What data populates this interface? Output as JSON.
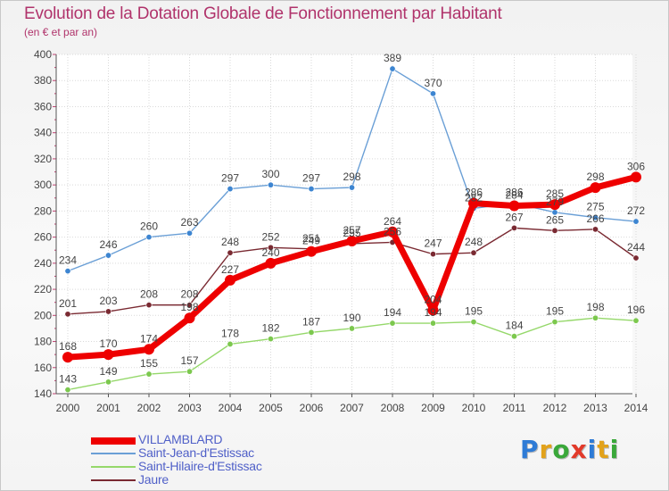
{
  "colors": {
    "title": "#b0336b",
    "grid": "#d9d9d9",
    "axis": "#555555",
    "label": "#444444"
  },
  "chart_data": {
    "type": "line",
    "title": "Evolution de la Dotation Globale de Fonctionnement par Habitant",
    "subtitle": "(en € et par an)",
    "xlabel": "",
    "ylabel": "",
    "ylim": [
      140,
      400
    ],
    "yticks": [
      140,
      160,
      180,
      200,
      220,
      240,
      260,
      280,
      300,
      320,
      340,
      360,
      380,
      400
    ],
    "categories": [
      "2000",
      "2001",
      "2002",
      "2003",
      "2004",
      "2005",
      "2006",
      "2007",
      "2008",
      "2009",
      "2010",
      "2011",
      "2012",
      "2013",
      "2014"
    ],
    "grid": true,
    "legend_position": "bottom-left",
    "series": [
      {
        "name": "Jaure",
        "color": "#7a2a32",
        "marker": "#7a2a32",
        "width": 1.4,
        "dot": 3.2,
        "values": [
          201,
          203,
          208,
          208,
          248,
          252,
          251,
          255,
          256,
          247,
          248,
          267,
          265,
          266,
          244
        ],
        "labels": [
          "201",
          "203",
          "208",
          "208",
          "248",
          "252",
          "251",
          "255",
          "256",
          "247",
          "248",
          "267",
          "265",
          "266",
          "244"
        ]
      },
      {
        "name": "Saint-Hilaire-d'Estissac",
        "color": "#95d86a",
        "marker": "#7cc84e",
        "width": 1.4,
        "dot": 3.2,
        "values": [
          143,
          149,
          155,
          157,
          178,
          182,
          187,
          190,
          194,
          194,
          195,
          184,
          195,
          198,
          196
        ],
        "labels": [
          "143",
          "149",
          "155",
          "157",
          "178",
          "182",
          "187",
          "190",
          "194",
          "194",
          "195",
          "184",
          "195",
          "198",
          "196"
        ]
      },
      {
        "name": "Saint-Jean-d'Estissac",
        "color": "#6a9fd6",
        "marker": "#3d85d1",
        "width": 1.4,
        "dot": 3.2,
        "values": [
          234,
          246,
          260,
          263,
          297,
          300,
          297,
          298,
          389,
          370,
          282,
          286,
          279,
          275,
          272
        ],
        "labels": [
          "234",
          "246",
          "260",
          "263",
          "297",
          "300",
          "297",
          "298",
          "389",
          "370",
          "282",
          "286",
          "279",
          "275",
          "272"
        ]
      },
      {
        "name": "VILLAMBLARD",
        "color": "#ee0000",
        "marker": "#ee0000",
        "width": 7,
        "dot": 6,
        "values": [
          168,
          170,
          174,
          198,
          227,
          240,
          249,
          257,
          264,
          204,
          286,
          284,
          285,
          298,
          306
        ],
        "labels": [
          "168",
          "170",
          "174",
          "198",
          "227",
          "240",
          "249",
          "257",
          "264",
          "204",
          "286",
          "284",
          "285",
          "298",
          "306"
        ]
      }
    ],
    "legend": [
      {
        "name": "VILLAMBLARD",
        "color": "#ee0000",
        "thick": true
      },
      {
        "name": "Saint-Jean-d'Estissac",
        "color": "#6a9fd6",
        "thick": false
      },
      {
        "name": "Saint-Hilaire-d'Estissac",
        "color": "#95d86a",
        "thick": false
      },
      {
        "name": "Jaure",
        "color": "#7a2a32",
        "thick": false
      }
    ]
  },
  "logo": {
    "letters": [
      "P",
      "r",
      "o",
      "x",
      "i",
      "t",
      "i"
    ],
    "colors": [
      "#2e7bd6",
      "#e2a21a",
      "#3aa83a",
      "#e23a2a",
      "#2e7bd6",
      "#e2a21a",
      "#3aa83a"
    ]
  }
}
